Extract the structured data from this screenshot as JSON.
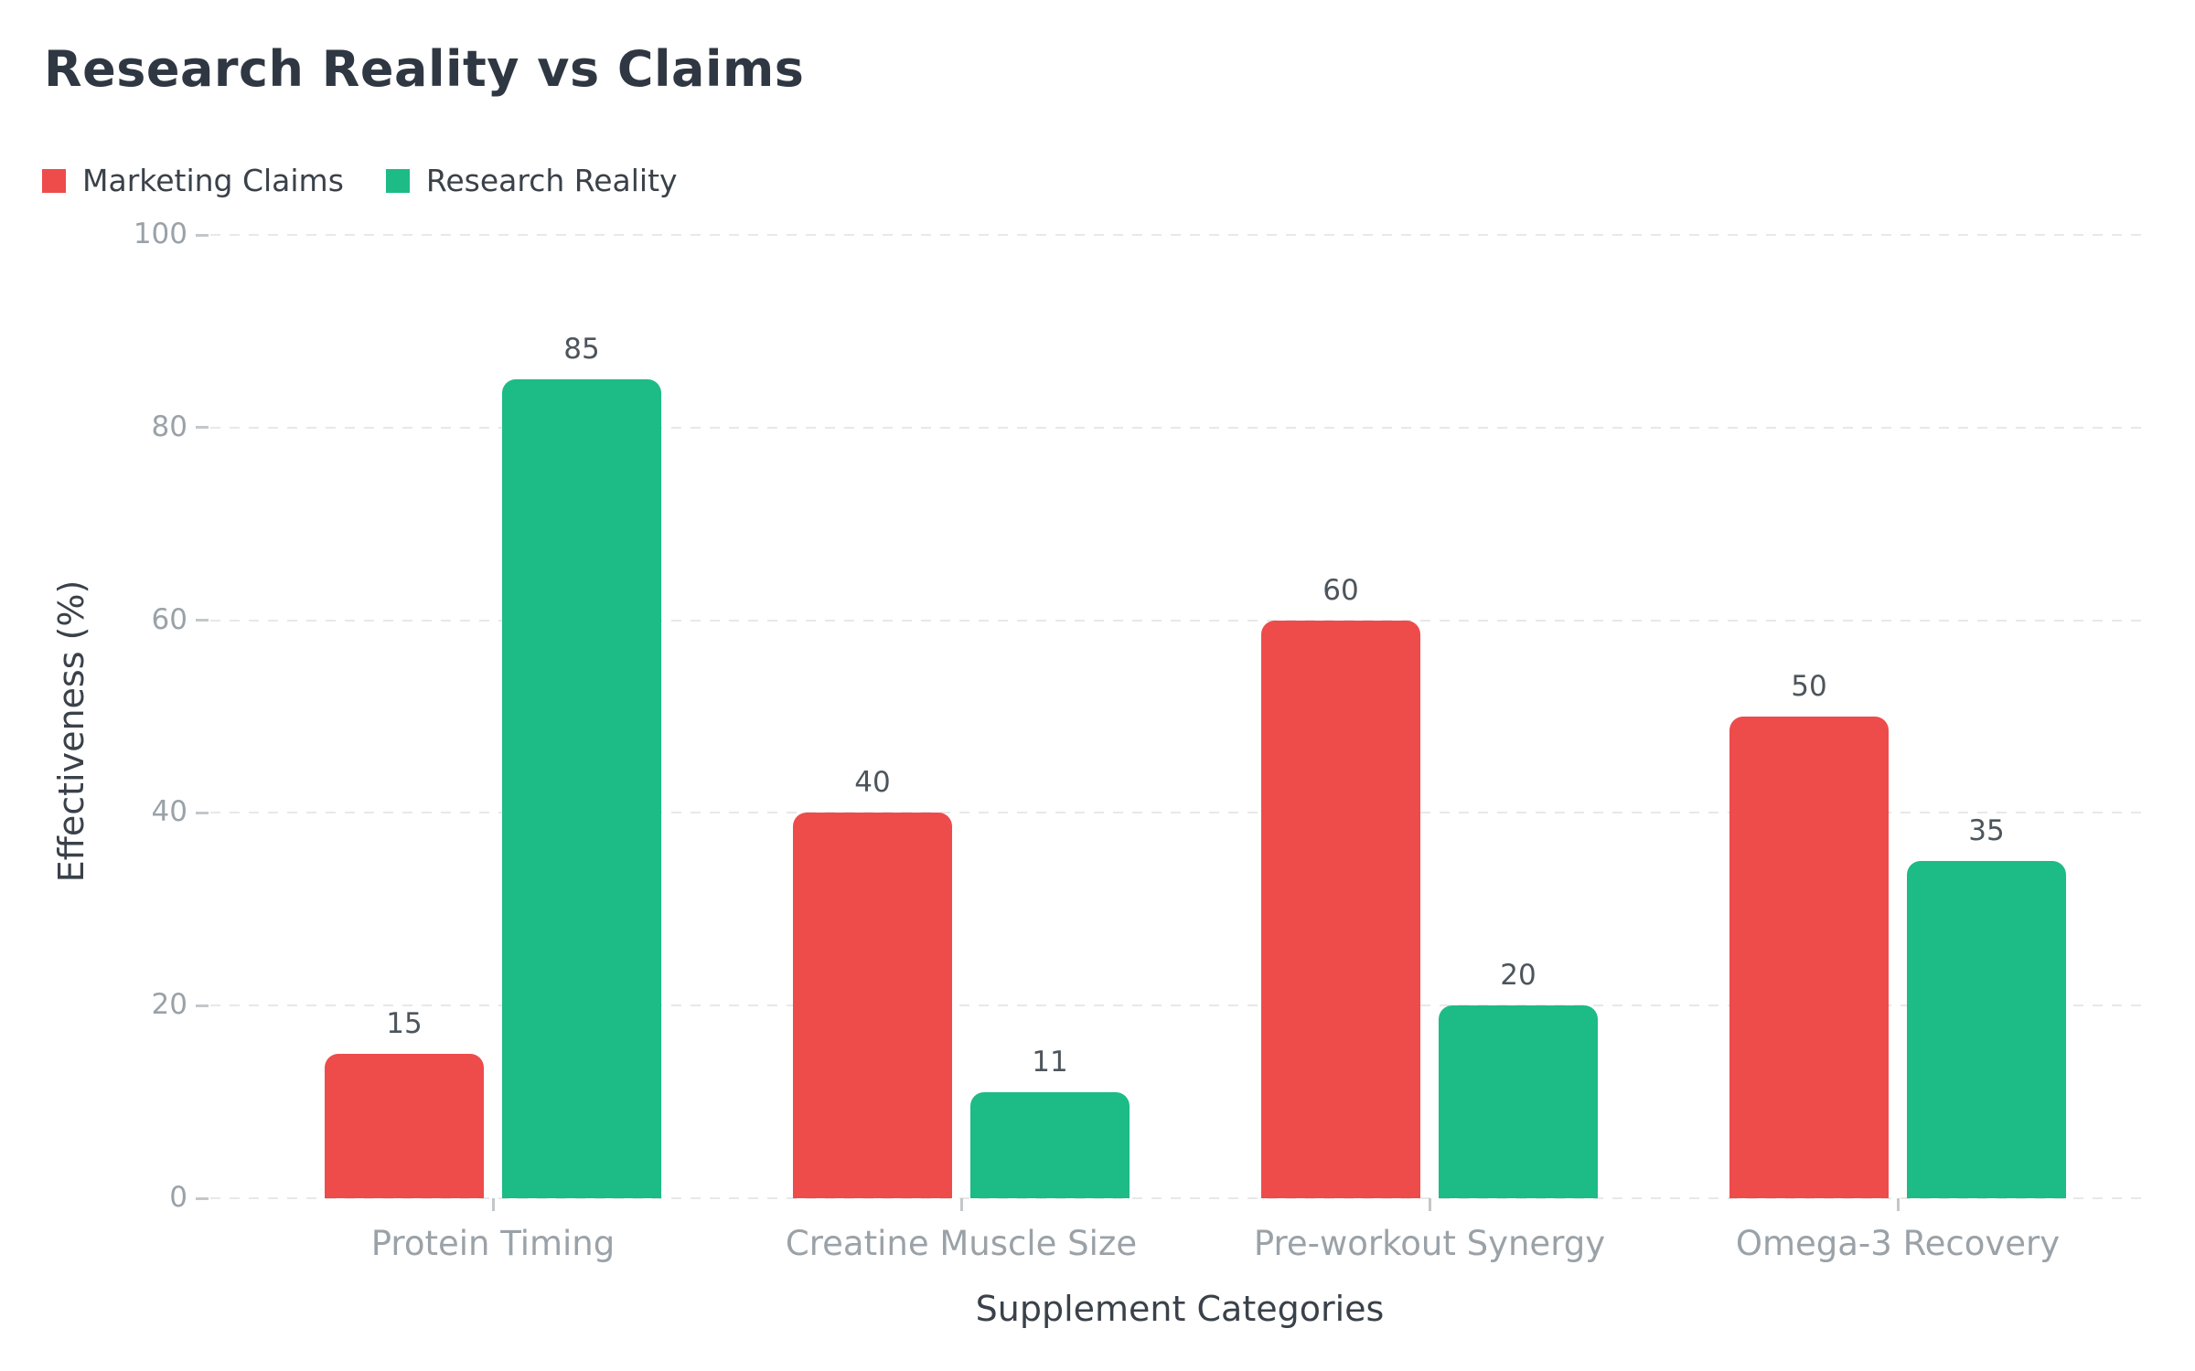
{
  "page_title": "Research Reality vs Claims",
  "chart_data": {
    "type": "bar",
    "title": "Research Reality vs Claims",
    "xlabel": "Supplement Categories",
    "ylabel": "Effectiveness (%)",
    "ylim": [
      0,
      100
    ],
    "yticks": [
      0,
      20,
      40,
      60,
      80,
      100
    ],
    "grid": "horizontal-dashed",
    "legend_position": "top-left",
    "bar_value_labels": true,
    "categories": [
      "Protein Timing",
      "Creatine Muscle Size",
      "Pre-workout Synergy",
      "Omega-3 Recovery"
    ],
    "series": [
      {
        "name": "Marketing Claims",
        "color": "#ee4b4b",
        "values": [
          15,
          40,
          60,
          50
        ]
      },
      {
        "name": "Research Reality",
        "color": "#1dbb86",
        "values": [
          85,
          11,
          20,
          35
        ]
      }
    ],
    "colors": {
      "title_text": "#2f3742",
      "axis_title_text": "#3a4149",
      "tick_text": "#9aa2a8",
      "value_label_text": "#4d555c",
      "grid": "#e8e8e8",
      "background": "#ffffff"
    }
  }
}
